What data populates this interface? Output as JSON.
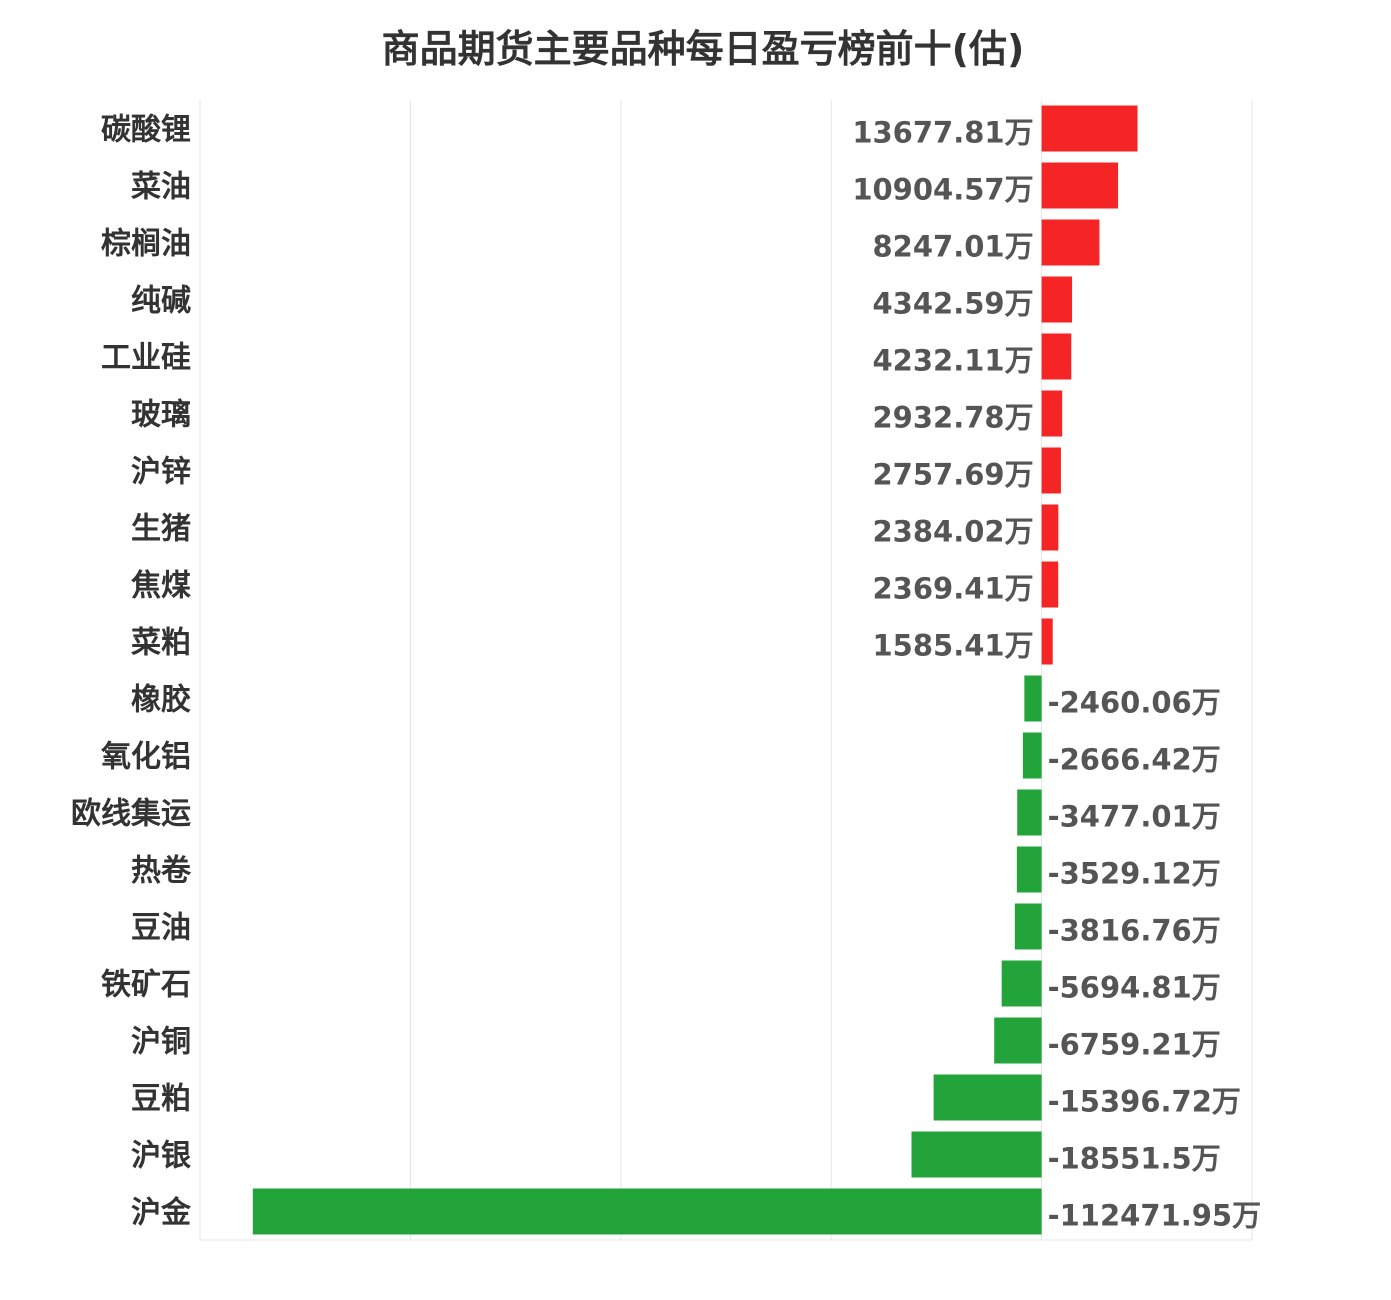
{
  "chart_data": {
    "type": "bar",
    "orientation": "horizontal",
    "title": "商品期货主要品种每日盈亏榜前十(估)",
    "unit": "万",
    "categories": [
      "碳酸锂",
      "菜油",
      "棕榈油",
      "纯碱",
      "工业硅",
      "玻璃",
      "沪锌",
      "生猪",
      "焦煤",
      "菜粕",
      "橡胶",
      "氧化铝",
      "欧线集运",
      "热卷",
      "豆油",
      "铁矿石",
      "沪铜",
      "豆粕",
      "沪银",
      "沪金"
    ],
    "values": [
      13677.81,
      10904.57,
      8247.01,
      4342.59,
      4232.11,
      2932.78,
      2757.69,
      2384.02,
      2369.41,
      1585.41,
      -2460.06,
      -2666.42,
      -3477.01,
      -3529.12,
      -3816.76,
      -5694.81,
      -6759.21,
      -15396.72,
      -18551.5,
      -112471.95
    ],
    "value_labels": [
      "13677.81万",
      "10904.57万",
      "8247.01万",
      "4342.59万",
      "4232.11万",
      "2932.78万",
      "2757.69万",
      "2384.02万",
      "2369.41万",
      "1585.41万",
      "-2460.06万",
      "-2666.42万",
      "-3477.01万",
      "-3529.12万",
      "-3816.76万",
      "-5694.81万",
      "-6759.21万",
      "-15396.72万",
      "-18551.5万",
      "-112471.95万"
    ],
    "xlim": [
      -120000,
      30000
    ],
    "grid": true,
    "legend": "none",
    "colors": {
      "positive": "#f52525",
      "negative": "#22a43a"
    }
  }
}
